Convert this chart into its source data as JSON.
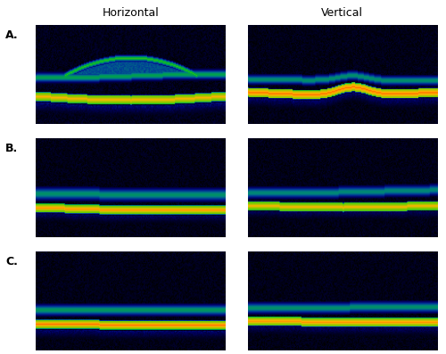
{
  "title": "",
  "col_labels": [
    "Horizontal",
    "Vertical"
  ],
  "row_labels": [
    "A.",
    "B.",
    "C."
  ],
  "background_color": "#ffffff",
  "fig_width": 5.0,
  "fig_height": 3.97,
  "dpi": 100,
  "label_fontsize": 9,
  "row_label_fontsize": 9,
  "grid_rows": 3,
  "grid_cols": 2
}
